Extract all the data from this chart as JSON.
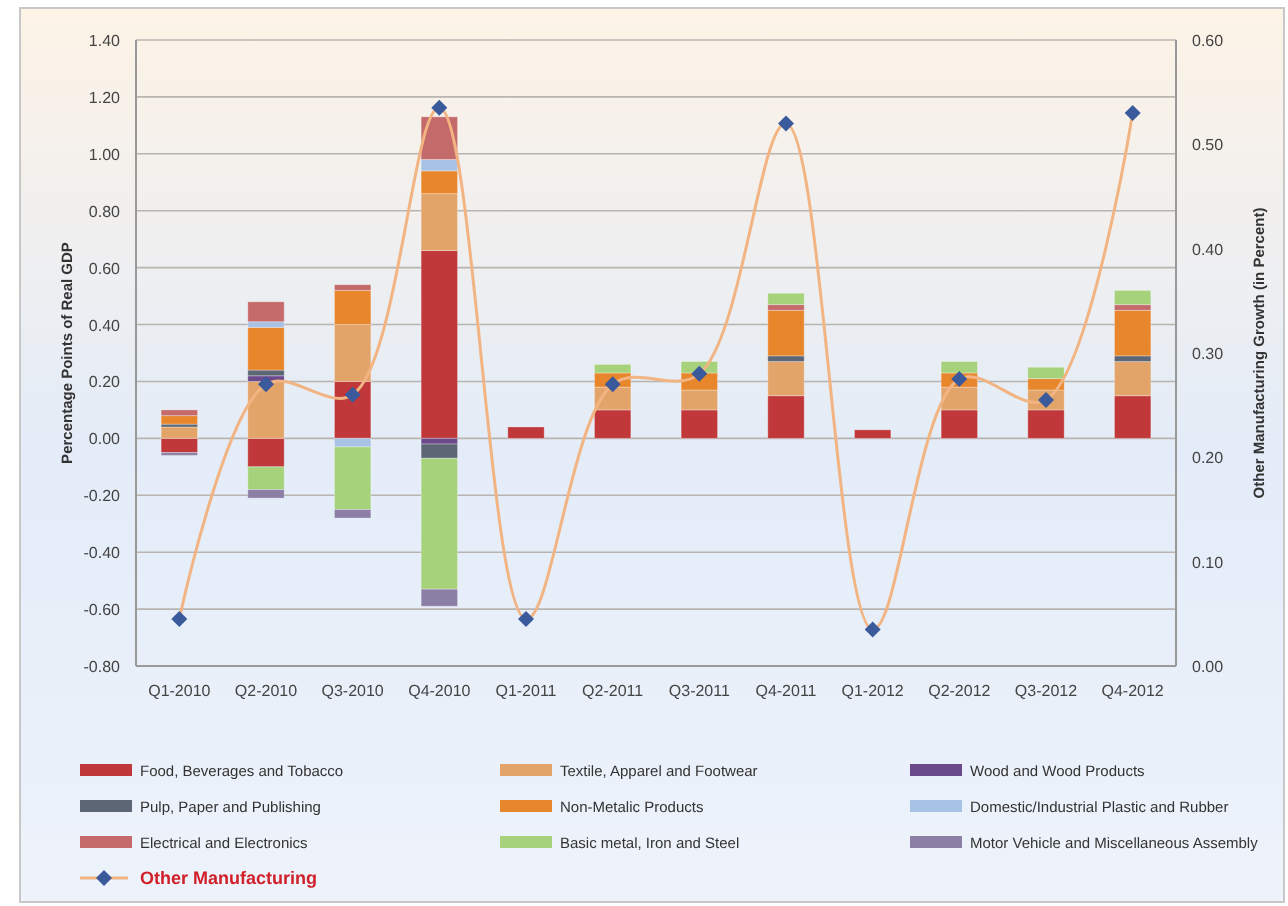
{
  "chart_data": {
    "type": "bar",
    "stacked": true,
    "categories": [
      "Q1-2010",
      "Q2-2010",
      "Q3-2010",
      "Q4-2010",
      "Q1-2011",
      "Q2-2011",
      "Q3-2011",
      "Q4-2011",
      "Q1-2012",
      "Q2-2012",
      "Q3-2012",
      "Q4-2012"
    ],
    "ylabel": "Percentage Points of Real GDP",
    "y2label": "Other Manufacturing  Growth (in Percent)",
    "ylim": [
      -0.8,
      1.4
    ],
    "yticks": [
      {
        "value": -0.8,
        "label": "-0.80"
      },
      {
        "value": -0.6,
        "label": "-0.60"
      },
      {
        "value": -0.4,
        "label": "-0.40"
      },
      {
        "value": -0.2,
        "label": "-0.20"
      },
      {
        "value": 0,
        "label": "0.00"
      },
      {
        "value": 0.2,
        "label": "0.20"
      },
      {
        "value": 0.4,
        "label": "0.40"
      },
      {
        "value": 0.6,
        "label": "0.60"
      },
      {
        "value": 0.8,
        "label": "0.80"
      },
      {
        "value": 1,
        "label": "1.00"
      },
      {
        "value": 1.2,
        "label": "1.20"
      },
      {
        "value": 1.4,
        "label": "1.40"
      }
    ],
    "y2lim": [
      0,
      0.6
    ],
    "y2ticks": [
      {
        "value": 0,
        "label": "0.00"
      },
      {
        "value": 0.1,
        "label": "0.10"
      },
      {
        "value": 0.2,
        "label": "0.20"
      },
      {
        "value": 0.3,
        "label": "0.30"
      },
      {
        "value": 0.4,
        "label": "0.40"
      },
      {
        "value": 0.5,
        "label": "0.50"
      },
      {
        "value": 0.6,
        "label": "0.60"
      }
    ],
    "grid": "y",
    "legend": "bottom",
    "series": [
      {
        "name": "Food, Beverages and Tobacco",
        "color": "#c0383a",
        "values": [
          -0.05,
          -0.1,
          0.2,
          0.66,
          0.04,
          0.1,
          0.1,
          0.15,
          0.03,
          0.1,
          0.1,
          0.15
        ]
      },
      {
        "name": "Textile, Apparel and Footwear",
        "color": "#e3a46a",
        "values": [
          0.04,
          0.2,
          0.2,
          0.2,
          null,
          0.08,
          0.07,
          0.12,
          null,
          0.08,
          0.07,
          0.12
        ]
      },
      {
        "name": "Wood and Wood Products",
        "color": "#6b4a8c",
        "values": [
          null,
          0.02,
          null,
          -0.02,
          null,
          null,
          null,
          null,
          null,
          null,
          null,
          null
        ]
      },
      {
        "name": "Pulp, Paper and Publishing",
        "color": "#5d6675",
        "values": [
          0.01,
          0.02,
          null,
          -0.05,
          null,
          null,
          null,
          0.02,
          null,
          null,
          null,
          0.02
        ]
      },
      {
        "name": "Non-Metalic Products",
        "color": "#e8862c",
        "values": [
          0.03,
          0.15,
          0.12,
          0.08,
          null,
          0.05,
          0.06,
          0.16,
          null,
          0.05,
          0.04,
          0.16
        ]
      },
      {
        "name": "Domestic/Industrial Plastic and Rubber",
        "color": "#a8c2e6",
        "values": [
          null,
          0.02,
          -0.03,
          0.04,
          null,
          null,
          null,
          null,
          null,
          null,
          null,
          null
        ]
      },
      {
        "name": "Electrical and Electronics",
        "color": "#c56a6a",
        "values": [
          0.02,
          0.07,
          0.02,
          0.15,
          null,
          null,
          null,
          0.02,
          null,
          null,
          null,
          0.02
        ]
      },
      {
        "name": "Basic metal, Iron and Steel",
        "color": "#a6d27c",
        "values": [
          null,
          -0.08,
          -0.22,
          -0.46,
          null,
          0.03,
          0.04,
          0.04,
          null,
          0.04,
          0.04,
          0.05
        ]
      },
      {
        "name": "Motor Vehicle and Miscellaneous Assembly",
        "color": "#8c7fa6",
        "values": [
          -0.01,
          -0.03,
          -0.03,
          -0.06,
          null,
          null,
          null,
          null,
          null,
          null,
          null,
          null
        ]
      },
      {
        "name": "Other Manufacturing",
        "type": "line",
        "axis": "y2",
        "color": "#f2b483",
        "marker": "diamond",
        "values": [
          0.045,
          0.27,
          0.26,
          0.535,
          0.045,
          0.27,
          0.28,
          0.52,
          0.035,
          0.275,
          0.255,
          0.53
        ]
      }
    ]
  }
}
